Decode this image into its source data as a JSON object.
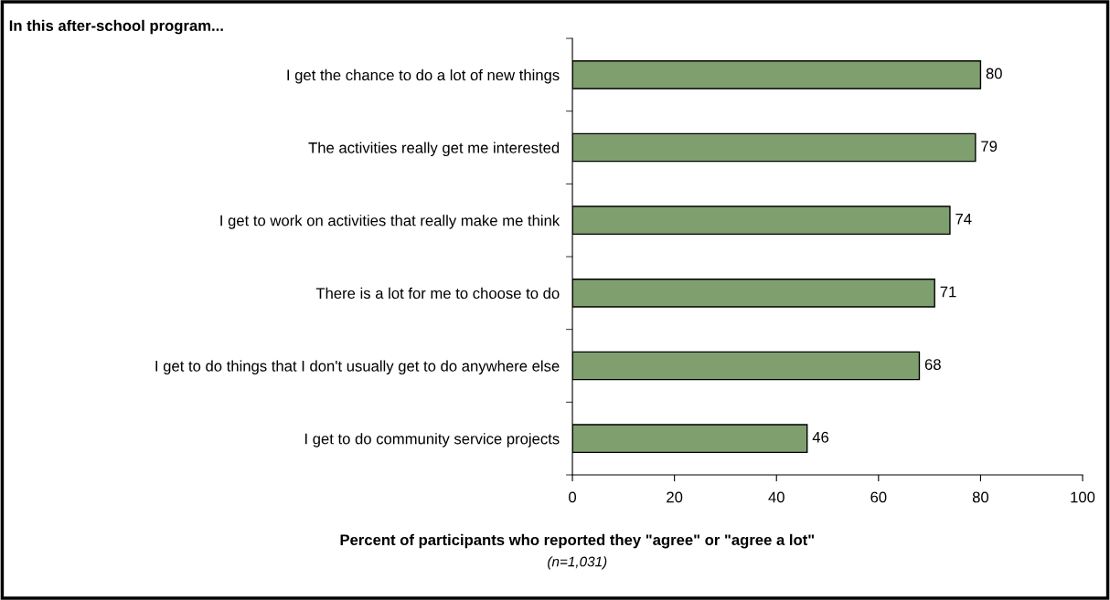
{
  "chart_data": {
    "type": "bar",
    "orientation": "horizontal",
    "title": "In this after-school program...",
    "categories": [
      "I get the chance to do a lot of new things",
      "The activities really get me interested",
      "I get to work on activities that really make me think",
      "There is a lot for me to choose to do",
      "I get to do things that I don't usually get to do anywhere else",
      "I get to do community service projects"
    ],
    "values": [
      80,
      79,
      74,
      71,
      68,
      46
    ],
    "color": "#7f9f6f",
    "xlim": [
      0,
      100
    ],
    "xticks": [
      0,
      20,
      40,
      60,
      80,
      100
    ],
    "xlabel": "Percent of participants who reported they \"agree\" or \"agree a lot\"",
    "annotations": [
      "(n=1,031)"
    ],
    "data_labels": true,
    "grid": false,
    "legend": false
  }
}
